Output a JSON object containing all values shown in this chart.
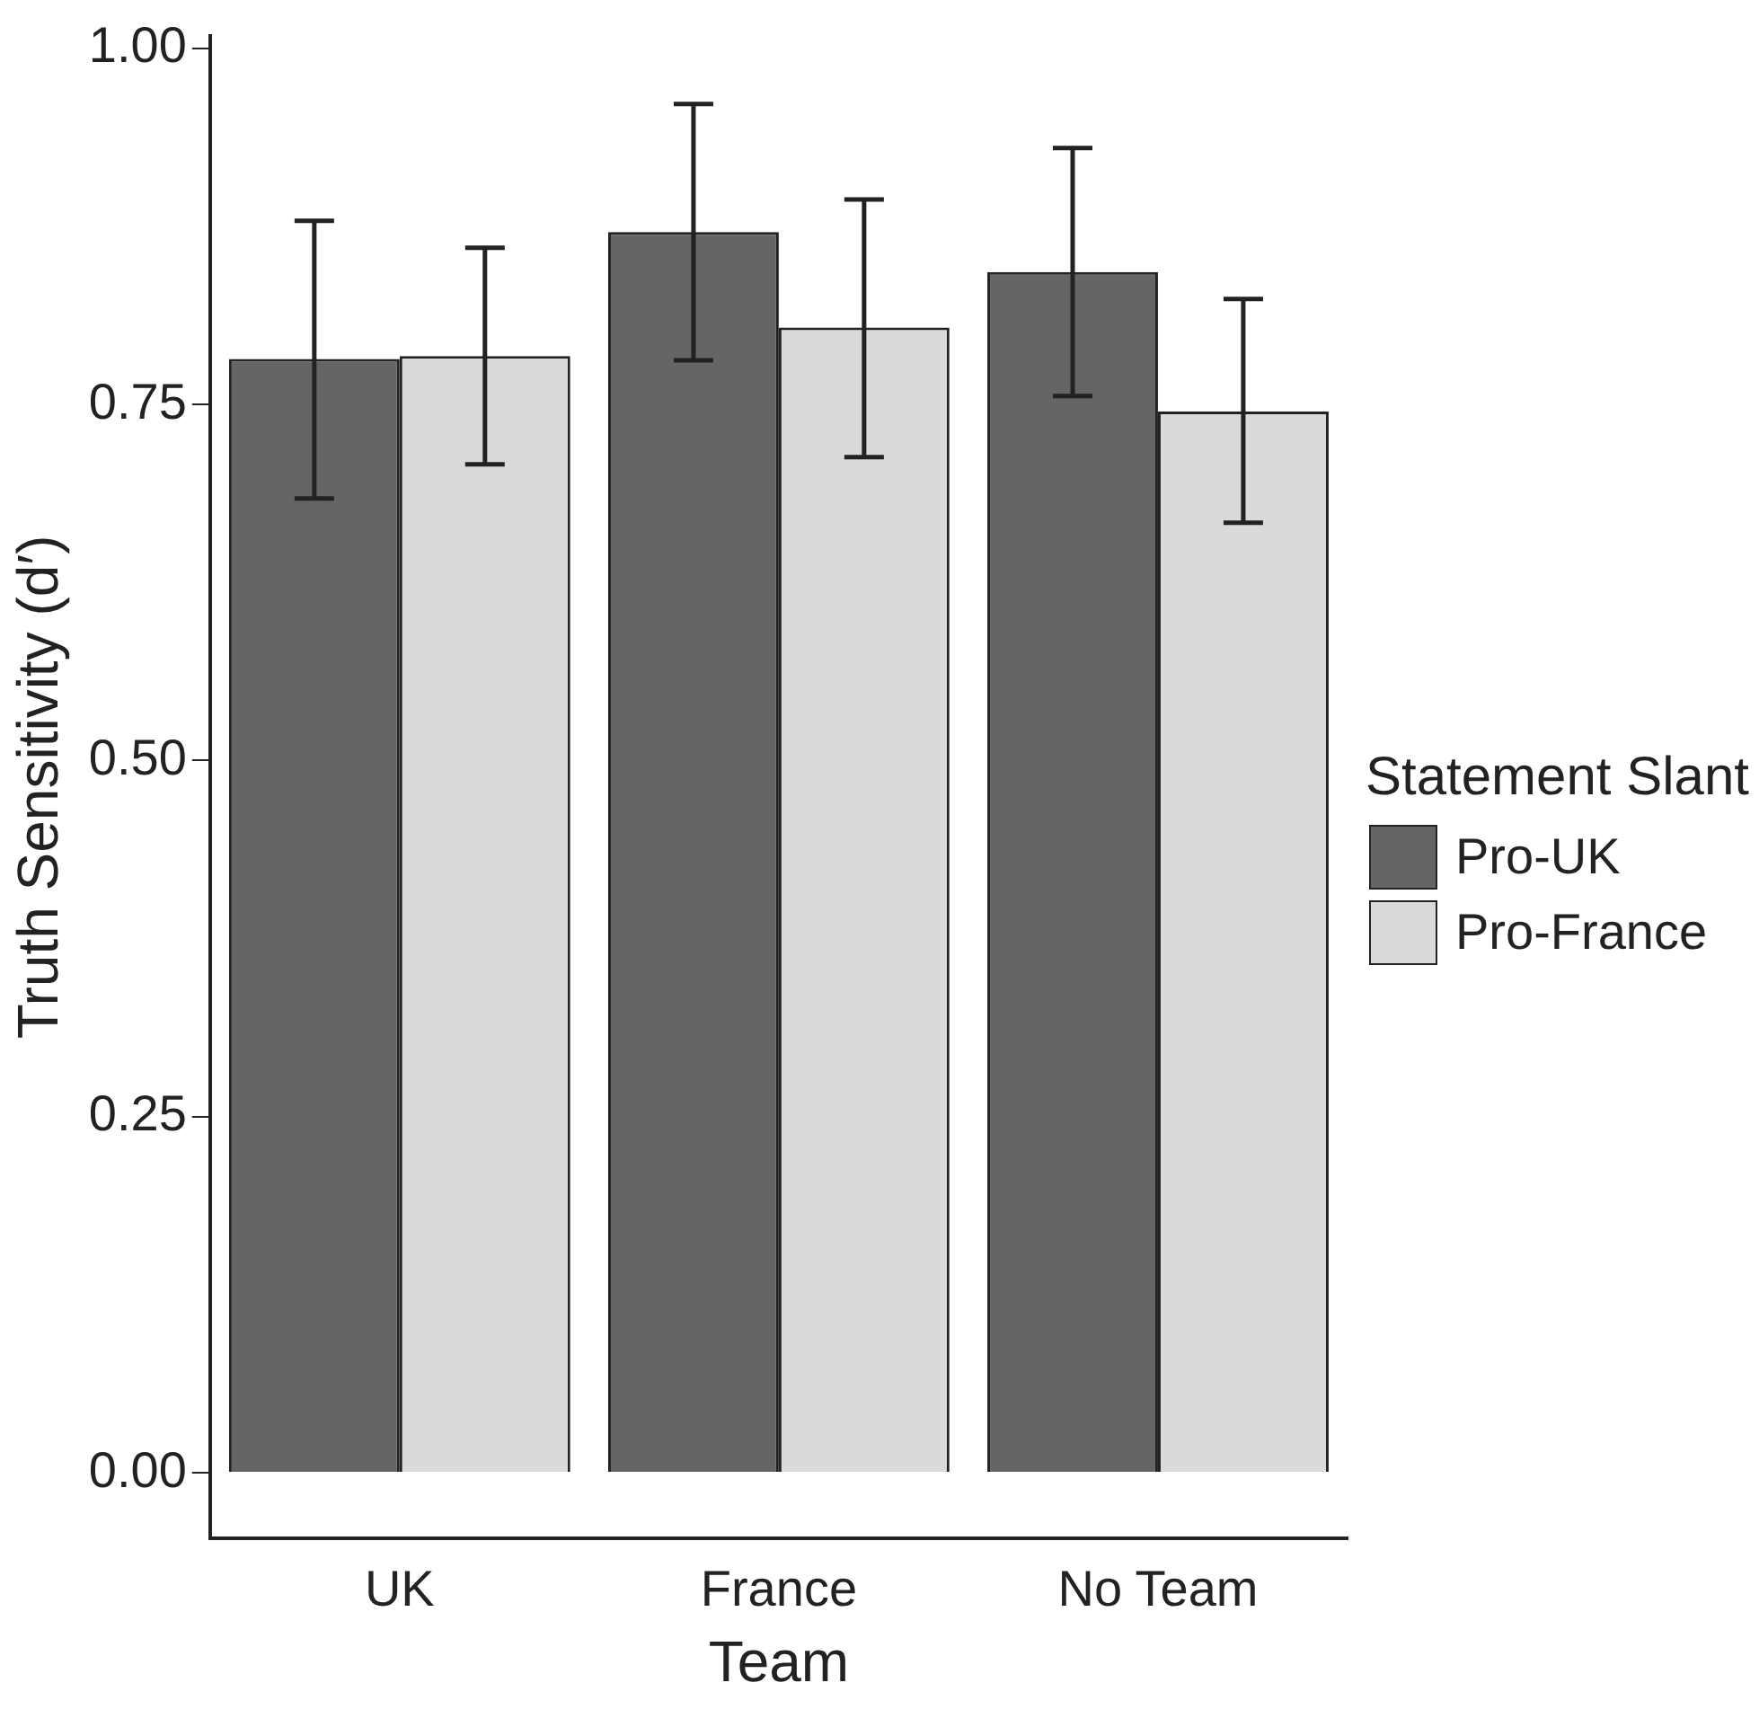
{
  "chart_data": {
    "type": "bar",
    "xlabel": "Team",
    "ylabel": "Truth Sensitivity (d′)",
    "legend_title": "Statement Slant",
    "categories": [
      "UK",
      "France",
      "No Team"
    ],
    "series": [
      {
        "name": "Pro-UK",
        "color": "#646567",
        "values": [
          0.782,
          0.871,
          0.843
        ],
        "errors": [
          [
            0.684,
            0.879
          ],
          [
            0.781,
            0.961
          ],
          [
            0.756,
            0.93
          ]
        ]
      },
      {
        "name": "Pro-France",
        "color": "#d9dadc",
        "values": [
          0.784,
          0.804,
          0.745
        ],
        "errors": [
          [
            0.708,
            0.86
          ],
          [
            0.713,
            0.894
          ],
          [
            0.667,
            0.824
          ]
        ]
      }
    ],
    "ylim": [
      -0.046,
      1.009
    ],
    "yticks": [
      {
        "value": 0,
        "label": "0.00"
      },
      {
        "value": 0.25,
        "label": "0.25"
      },
      {
        "value": 0.5,
        "label": "0.50"
      },
      {
        "value": 0.75,
        "label": "0.75"
      },
      {
        "value": 1,
        "label": "1.00"
      }
    ],
    "grid": false,
    "legend": "right"
  }
}
